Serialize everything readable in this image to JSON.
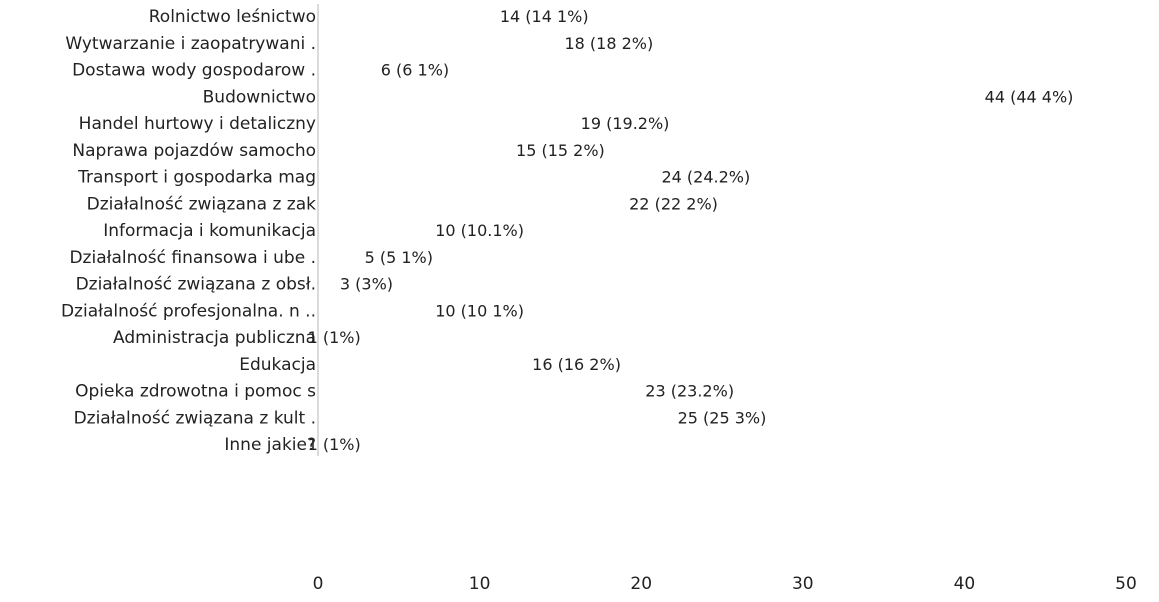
{
  "chart_data": {
    "type": "bar",
    "orientation": "horizontal",
    "categories": [
      "Rolnictwo leśnictwo",
      "Wytwarzanie i zaopatrywani .",
      "Dostawa wody gospodarow .",
      "Budownictwo",
      "Handel hurtowy i detaliczny",
      "Naprawa pojazdów samocho",
      "Transport i gospodarka mag",
      "Działalność związana z zak",
      "Informacja i komunikacja",
      "Działalność finansowa i ube .",
      "Działalność związana z obsł.",
      "Działalność profesjonalna. n ..",
      "Administracja publiczna",
      "Edukacja",
      "Opieka zdrowotna i pomoc s",
      "Działalność związana z kult .",
      "Inne jakie?"
    ],
    "values": [
      14,
      18,
      6,
      44,
      19,
      15,
      24,
      22,
      10,
      5,
      3,
      10,
      1,
      16,
      23,
      25,
      1
    ],
    "data_labels": [
      "14 (14 1%)",
      "18 (18 2%)",
      "6 (6 1%)",
      "44 (44 4%)",
      "19 (19.2%)",
      "15 (15 2%)",
      "24 (24.2%)",
      "22 (22 2%)",
      "10 (10.1%)",
      "5 (5 1%)",
      "3 (3%)",
      "10 (10 1%)",
      "1 (1%)",
      "16 (16 2%)",
      "23 (23.2%)",
      "25 (25 3%)",
      "1 (1%)"
    ],
    "xlim": [
      0,
      50
    ],
    "xticks": [
      "0",
      "10",
      "20",
      "30",
      "40",
      "50"
    ],
    "bar_color": "#ffffff",
    "axis_color": "#cfcfcf",
    "text_color": "#222222",
    "grid": false,
    "legend": false
  }
}
